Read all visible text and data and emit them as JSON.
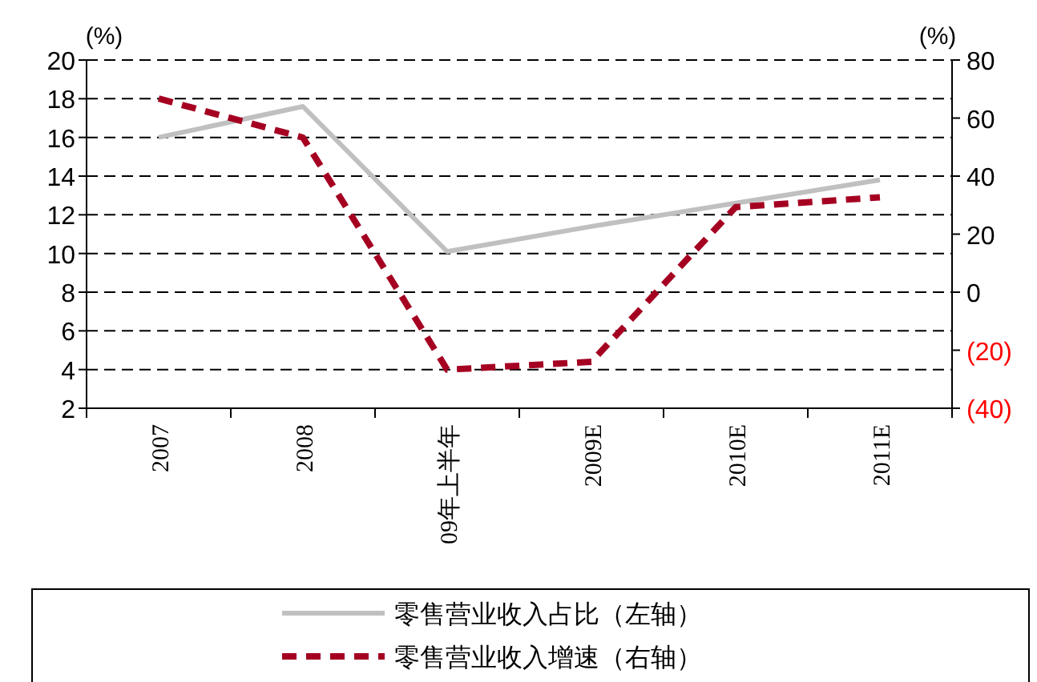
{
  "chart_data": {
    "type": "line",
    "ylabel": "(%)",
    "y2label": "(%)",
    "categories": [
      "2007",
      "2008",
      "09年上半年",
      "2009E",
      "2010E",
      "2011E"
    ],
    "series": [
      {
        "name": "零售营业收入占比（左轴）",
        "color": "#c0c0c0",
        "line_style": "solid",
        "values": [
          16.0,
          17.6,
          10.1,
          11.4,
          12.6,
          13.8
        ]
      },
      {
        "name": "零售营业收入增速（右轴）",
        "color": "#a50021",
        "line_style": "dashed",
        "axis": "y2",
        "values": [
          66.7,
          53.3,
          -26.7,
          -24,
          29.3,
          32.7
        ]
      }
    ],
    "ylim": [
      2,
      20
    ],
    "yticks": [
      2,
      4,
      6,
      8,
      10,
      12,
      14,
      16,
      18,
      20
    ],
    "y2lim": [
      -40,
      80
    ],
    "y2ticks": [
      {
        "value": -40,
        "label": "(40)"
      },
      {
        "value": -20,
        "label": "(20)"
      },
      0,
      20,
      40,
      60,
      80
    ],
    "grid": "y",
    "legend": "bottom"
  }
}
